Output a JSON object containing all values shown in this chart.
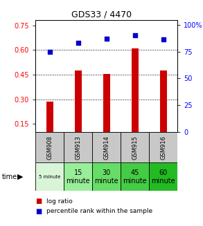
{
  "title": "GDS33 / 4470",
  "samples": [
    "GSM908",
    "GSM913",
    "GSM914",
    "GSM915",
    "GSM916"
  ],
  "log_ratios": [
    0.285,
    0.475,
    0.455,
    0.61,
    0.475
  ],
  "percentile_ranks": [
    75,
    83,
    87,
    90,
    86
  ],
  "bar_color": "#cc0000",
  "dot_color": "#0000cc",
  "left_yticks": [
    0.15,
    0.3,
    0.45,
    0.6,
    0.75
  ],
  "right_yticks": [
    0,
    25,
    50,
    75,
    100
  ],
  "ylim_left": [
    0.1,
    0.78
  ],
  "ylim_right": [
    0,
    104
  ],
  "background_color": "#ffffff",
  "table_gray": "#c8c8c8",
  "time_labels": [
    "5 minute",
    "15\nminute",
    "30\nminute",
    "45\nminute",
    "60\nminute"
  ],
  "time_colors": [
    "#d8f5d8",
    "#99ee99",
    "#66dd66",
    "#44cc44",
    "#22bb22"
  ],
  "legend_bar_label": "log ratio",
  "legend_dot_label": "percentile rank within the sample",
  "time_word": "time"
}
